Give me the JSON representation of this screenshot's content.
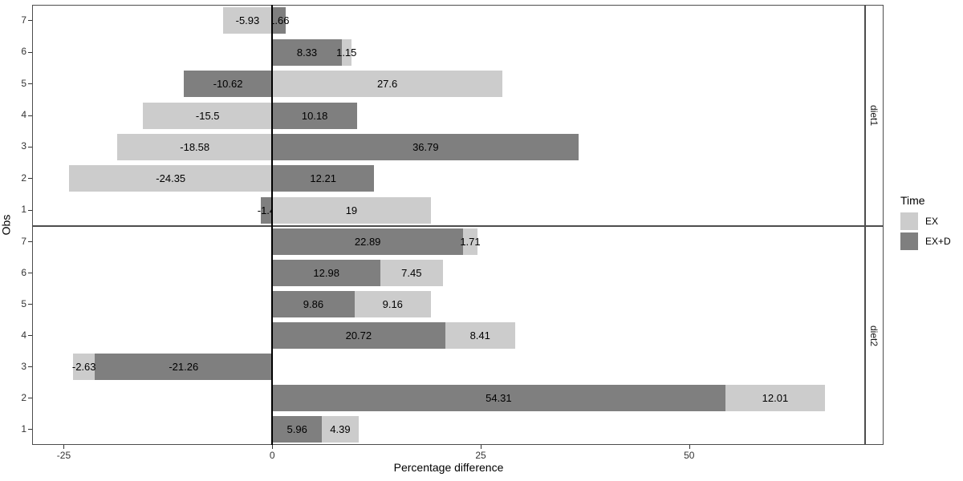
{
  "chart_data": {
    "type": "bar",
    "orientation": "horizontal",
    "stacked": true,
    "title": "",
    "xlabel": "Percentage difference",
    "ylabel": "Obs",
    "xlim": [
      -28.8,
      71.1
    ],
    "x_ticks": [
      -25,
      0,
      25,
      50
    ],
    "grid": false,
    "zero_line_color": "#000000",
    "panel_border_color": "#4d4d4d",
    "legend": {
      "title": "Time",
      "position": "right",
      "entries": [
        {
          "label": "EX",
          "color": "#cccccc"
        },
        {
          "label": "EX+D",
          "color": "#7f7f7f"
        }
      ]
    },
    "stack_order": [
      "EX+D",
      "EX"
    ],
    "facets": [
      {
        "label": "diet1",
        "rows": [
          {
            "obs": "7",
            "values": {
              "EX": "-5.93",
              "EX+D": "1.66"
            }
          },
          {
            "obs": "6",
            "values": {
              "EX": "1.15",
              "EX+D": "8.33"
            }
          },
          {
            "obs": "5",
            "values": {
              "EX": "27.6",
              "EX+D": "-10.62"
            }
          },
          {
            "obs": "4",
            "values": {
              "EX": "-15.5",
              "EX+D": "10.18"
            }
          },
          {
            "obs": "3",
            "values": {
              "EX": "-18.58",
              "EX+D": "36.79"
            }
          },
          {
            "obs": "2",
            "values": {
              "EX": "-24.35",
              "EX+D": "12.21"
            }
          },
          {
            "obs": "1",
            "values": {
              "EX": "19",
              "EX+D": "-1.4"
            }
          }
        ]
      },
      {
        "label": "diet2",
        "rows": [
          {
            "obs": "7",
            "values": {
              "EX": "1.71",
              "EX+D": "22.89"
            }
          },
          {
            "obs": "6",
            "values": {
              "EX": "7.45",
              "EX+D": "12.98"
            }
          },
          {
            "obs": "5",
            "values": {
              "EX": "9.16",
              "EX+D": "9.86"
            }
          },
          {
            "obs": "4",
            "values": {
              "EX": "8.41",
              "EX+D": "20.72"
            }
          },
          {
            "obs": "3",
            "values": {
              "EX": "-2.63",
              "EX+D": "-21.26"
            }
          },
          {
            "obs": "2",
            "values": {
              "EX": "12.01",
              "EX+D": "54.31"
            }
          },
          {
            "obs": "1",
            "values": {
              "EX": "4.39",
              "EX+D": "5.96"
            }
          }
        ]
      }
    ]
  }
}
